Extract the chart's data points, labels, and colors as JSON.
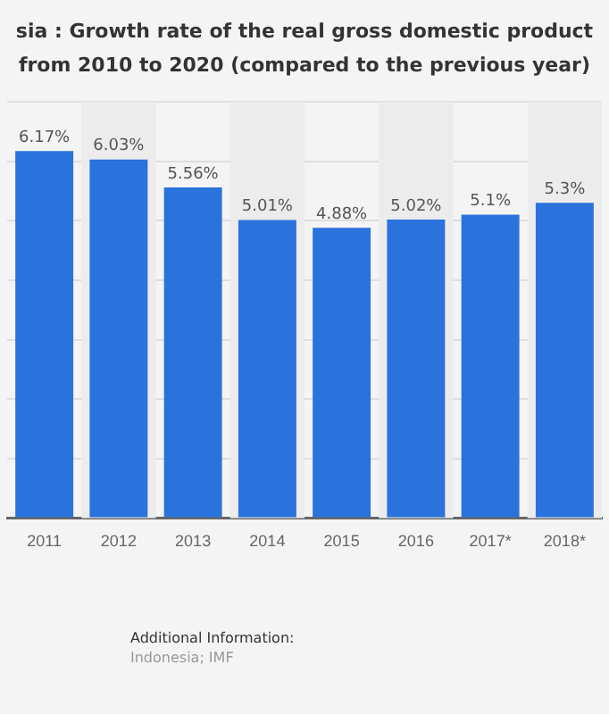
{
  "chart_data": {
    "type": "bar",
    "title": "sia : Growth rate of the real gross domestic product",
    "subtitle": "from 2010 to 2020 (compared to the previous year)",
    "categories": [
      "2011",
      "2012",
      "2013",
      "2014",
      "2015",
      "2016",
      "2017*",
      "2018*"
    ],
    "values": [
      6.17,
      6.03,
      5.56,
      5.01,
      4.88,
      5.02,
      5.1,
      5.3
    ],
    "value_labels": [
      "6.17%",
      "6.03%",
      "5.56%",
      "5.01%",
      "4.88%",
      "5.02%",
      "5.1%",
      "5.3%"
    ],
    "color": "#2a72dc",
    "ylim": [
      0,
      7
    ],
    "yticks": [
      {
        "value": 0,
        "label": null
      },
      {
        "value": 1,
        "label": null
      },
      {
        "value": 2,
        "label": null
      },
      {
        "value": 3,
        "label": null
      },
      {
        "value": 4,
        "label": null
      },
      {
        "value": 5,
        "label": null
      },
      {
        "value": 6,
        "label": null
      },
      {
        "value": 7,
        "label": null
      }
    ],
    "tick_labels": "x",
    "grid": "y",
    "annotations": [
      "Additional Information:",
      "Indonesia; IMF"
    ]
  }
}
